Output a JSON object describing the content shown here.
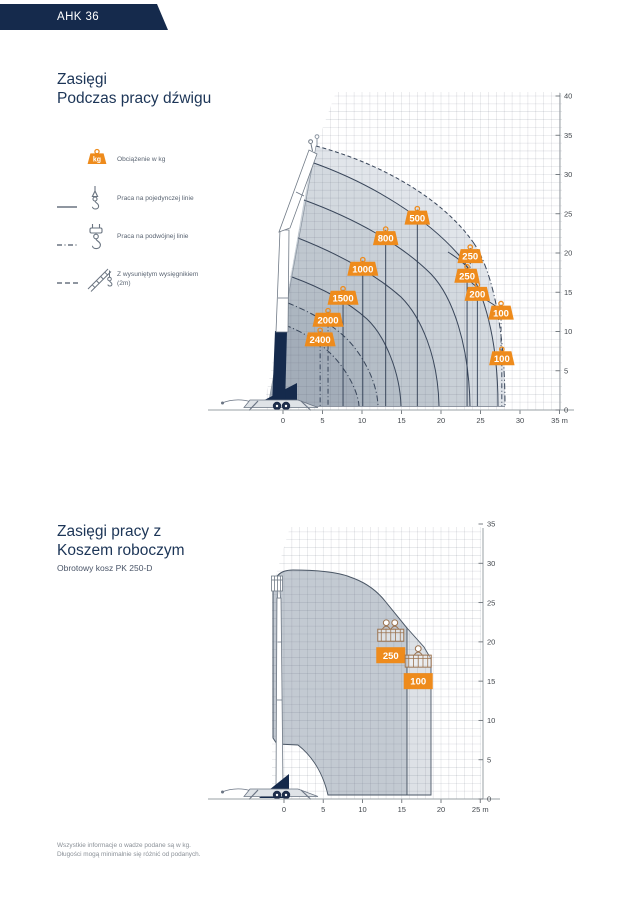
{
  "page": {
    "badge": "AHK 36"
  },
  "top_section": {
    "title_line1": "Zasięgi",
    "title_line2": "Podczas pracy dźwigu",
    "legend": [
      {
        "icon": "weight-kg-icon",
        "kg_text": "kg",
        "label": "Obciążenie w kg"
      },
      {
        "icon": "single-line-hook-icon",
        "line_style": "solid",
        "label": "Praca na pojedynczej linie"
      },
      {
        "icon": "double-line-hook-icon",
        "line_style": "dash-dot",
        "label": "Praca na podwójnej linie"
      },
      {
        "icon": "extended-boom-icon",
        "line_style": "dashed",
        "label": "Z wysuniętym wysięgnikiem",
        "label2": "(2m)"
      }
    ]
  },
  "bottom_section": {
    "title_line1": "Zasięgi pracy z",
    "title_line2": "Koszem roboczym",
    "subtitle": "Obrotowy kosz PK 250-D"
  },
  "footer": {
    "line1": "Wszystkie informacje o wadze podane są w kg.",
    "line2": "Długości mogą minimalnie się różnić od podanych."
  },
  "colors": {
    "navy": "#152a4c",
    "navy_text": "#1c3557",
    "accent_orange": "#ee8b1c",
    "grid": "#5b6675",
    "zone_fills": [
      "#e1e5ea",
      "#d3d9df",
      "#c9d0d7",
      "#bfc7cf",
      "#b5bec7",
      "#acb6c0",
      "#a3adb9"
    ],
    "basket_zone_main": "#c3cad2",
    "basket_zone_extended": "#dde1e6"
  },
  "chart_data": [
    {
      "type": "area",
      "title": "Zasięgi podczas pracy dźwigu",
      "unit": "m",
      "x_ticks": [
        0,
        5,
        10,
        15,
        20,
        25,
        30,
        35
      ],
      "y_ticks": [
        0,
        5,
        10,
        15,
        20,
        25,
        30,
        35,
        40
      ],
      "xlim": [
        -9,
        35
      ],
      "ylim": [
        0,
        40
      ],
      "max_height_m": 34,
      "max_reach_m": 27.5,
      "grid": true,
      "legend_position": "left",
      "load_points_kg": [
        {
          "load": "2400",
          "x_m": 4.7,
          "y_m": 9.0,
          "drop_style": "dashdot",
          "drop_to_m": 0.5
        },
        {
          "load": "2000",
          "x_m": 5.7,
          "y_m": 11.5,
          "drop_style": "dashdot",
          "drop_to_m": 0.5
        },
        {
          "load": "1500",
          "x_m": 7.6,
          "y_m": 14.3,
          "drop_style": "solid",
          "drop_to_m": 0.5
        },
        {
          "load": "1000",
          "x_m": 10.1,
          "y_m": 18.0,
          "drop_style": "solid",
          "drop_to_m": 0.5
        },
        {
          "load": "800",
          "x_m": 13.0,
          "y_m": 21.9,
          "drop_style": "solid",
          "drop_to_m": 0.5
        },
        {
          "load": "500",
          "x_m": 17.0,
          "y_m": 24.5,
          "drop_style": "solid",
          "drop_to_m": 0.5
        },
        {
          "load": "250",
          "x_m": 23.7,
          "y_m": 19.6,
          "drop_style": "dashdot",
          "drop_to_m": 18.0
        },
        {
          "load": "250",
          "x_m": 23.3,
          "y_m": 17.1,
          "drop_style": "solid",
          "drop_to_m": 0.5
        },
        {
          "load": "200",
          "x_m": 24.6,
          "y_m": 14.8,
          "drop_style": "solid",
          "drop_to_m": 0.5
        },
        {
          "load": "100",
          "x_m": 27.6,
          "y_m": 12.4,
          "drop_style": "dashdot",
          "drop_to_m": 7.6
        },
        {
          "load": "100",
          "x_m": 27.7,
          "y_m": 6.6,
          "drop_style": "dashdot",
          "drop_to_m": 0.5
        }
      ]
    },
    {
      "type": "area",
      "title": "Zasięgi pracy z koszem roboczym",
      "subtitle": "Obrotowy kosz PK 250-D",
      "unit": "m",
      "x_ticks": [
        0,
        5,
        10,
        15,
        20,
        25
      ],
      "y_ticks": [
        0,
        5,
        10,
        15,
        20,
        25,
        30,
        35
      ],
      "xlim": [
        -9,
        25
      ],
      "ylim": [
        0,
        35
      ],
      "max_height_m": 29.5,
      "max_reach_m": 18.8,
      "grid": true,
      "basket_points_kg": [
        {
          "load": "250",
          "persons": 2,
          "x_m": 13.6,
          "y_m": 18.3
        },
        {
          "load": "100",
          "persons": 1,
          "x_m": 17.1,
          "y_m": 15.0
        }
      ]
    }
  ]
}
